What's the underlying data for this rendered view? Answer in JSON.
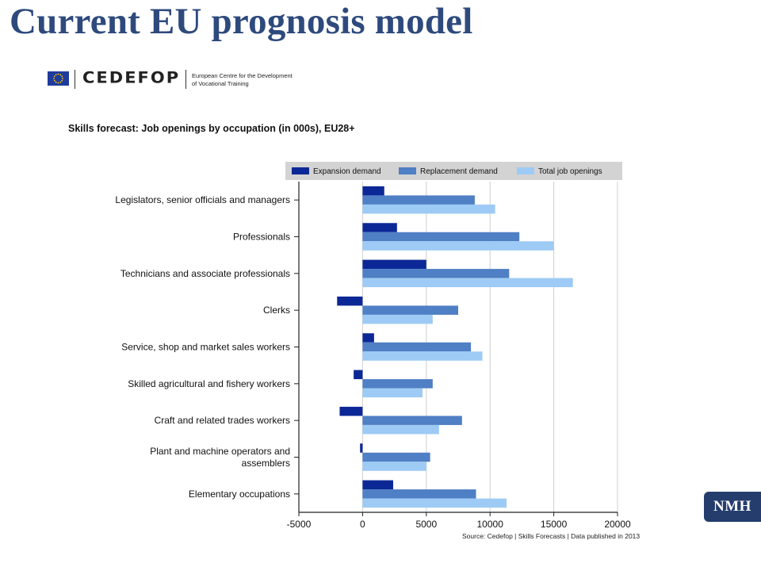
{
  "slide": {
    "title": "Current EU prognosis model"
  },
  "logo": {
    "wordmark": "CEDEFOP",
    "line1": "European Centre for the Development",
    "line2": "of Vocational Training"
  },
  "badge": {
    "text": "NMH"
  },
  "chart_data": {
    "type": "bar",
    "orientation": "horizontal",
    "title": "Skills forecast: Job openings by occupation (in 000s), EU28+",
    "source": "Source: Cedefop | Skills Forecasts | Data published in 2013",
    "categories": [
      [
        "Legislators, senior officials and managers"
      ],
      [
        "Professionals"
      ],
      [
        "Technicians and associate professionals"
      ],
      [
        "Clerks"
      ],
      [
        "Service, shop and market sales workers"
      ],
      [
        "Skilled agricultural and fishery workers"
      ],
      [
        "Craft and related trades workers"
      ],
      [
        "Plant and machine operators and",
        "assemblers"
      ],
      [
        "Elementary occupations"
      ]
    ],
    "series": [
      {
        "name": "Expansion demand",
        "color": "#0c2896",
        "values": [
          1700,
          2700,
          5000,
          -2000,
          900,
          -700,
          -1800,
          -200,
          2400
        ]
      },
      {
        "name": "Replacement demand",
        "color": "#4f7fc4",
        "values": [
          8800,
          12300,
          11500,
          7500,
          8500,
          5500,
          7800,
          5300,
          8900
        ]
      },
      {
        "name": "Total job openings",
        "color": "#9ecbf5",
        "values": [
          10400,
          15000,
          16500,
          5500,
          9400,
          4700,
          6000,
          5000,
          11300
        ]
      }
    ],
    "xlim": [
      -5000,
      20000
    ],
    "ticks": [
      "-5000",
      "0",
      "5000",
      "10000",
      "15000",
      "20000"
    ],
    "tick_values": [
      -5000,
      0,
      5000,
      10000,
      15000,
      20000
    ],
    "grid": true,
    "legend_position": "top"
  }
}
